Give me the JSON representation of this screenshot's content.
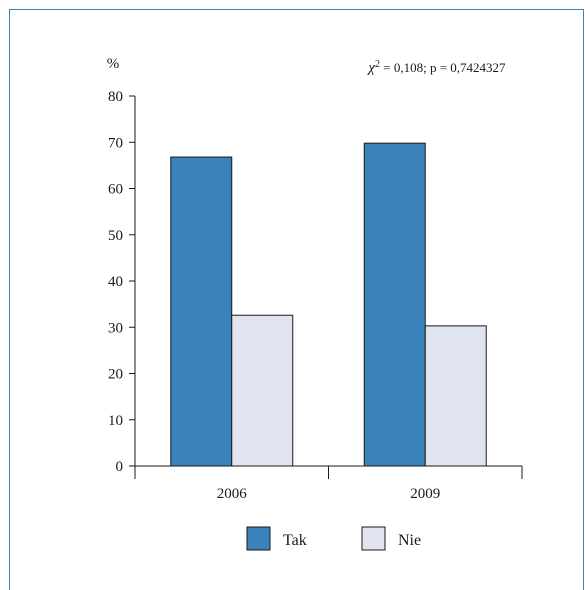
{
  "chart_data": {
    "type": "bar",
    "ylabel": "%",
    "ylim": [
      0,
      80
    ],
    "yticks": [
      "0",
      "10",
      "20",
      "30",
      "40",
      "50",
      "60",
      "70",
      "80"
    ],
    "categories": [
      "2006",
      "2009"
    ],
    "series": [
      {
        "name": "Tak",
        "values": [
          66.8,
          69.8
        ],
        "color": "#3a82bb"
      },
      {
        "name": "Nie",
        "values": [
          32.6,
          30.3
        ],
        "color": "#dfe4f0"
      }
    ],
    "annotation": {
      "chi_symbol": "χ",
      "chi_exponent": "2",
      "stat_text": " = 0,108; p = 0,7424327"
    },
    "legend_position": "bottom"
  }
}
